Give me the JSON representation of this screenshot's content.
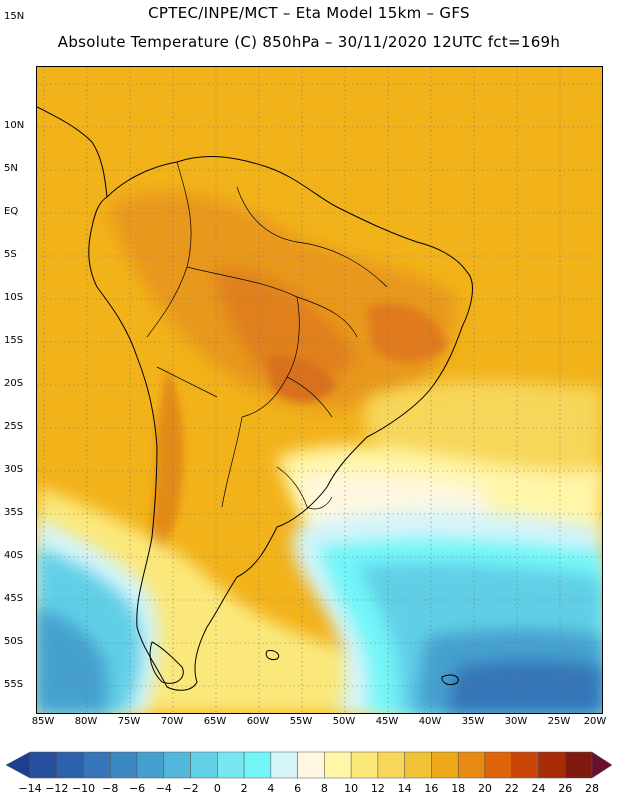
{
  "header": {
    "line1": "CPTEC/INPE/MCT –  Eta Model 15km – GFS",
    "line2": "Absolute Temperature (C) 850hPa – 30/11/2020 12UTC fct=169h"
  },
  "latitude_labels": [
    "15N",
    "10N",
    "5N",
    "EQ",
    "5S",
    "10S",
    "15S",
    "20S",
    "25S",
    "30S",
    "35S",
    "40S",
    "45S",
    "50S",
    "55S"
  ],
  "longitude_labels": [
    "85W",
    "80W",
    "75W",
    "70W",
    "65W",
    "60W",
    "55W",
    "50W",
    "45W",
    "40W",
    "35W",
    "30W",
    "25W",
    "20W"
  ],
  "colorbar": {
    "labels": [
      "-14",
      "-12",
      "-10",
      "-8",
      "-6",
      "-4",
      "-2",
      "0",
      "2",
      "4",
      "6",
      "8",
      "10",
      "12",
      "14",
      "16",
      "18",
      "20",
      "22",
      "24",
      "26",
      "28"
    ],
    "colors": [
      "#1d3f8f",
      "#24509d",
      "#2c62ab",
      "#3575b8",
      "#3c88c3",
      "#45a0cf",
      "#52b7da",
      "#61cfe6",
      "#77e6f0",
      "#72f6f8",
      "#d4f4fa",
      "#fff7e0",
      "#fff6a8",
      "#fbe87a",
      "#f7d65a",
      "#f2c236",
      "#eea918",
      "#e68a10",
      "#de640a",
      "#ca4608",
      "#a82c08",
      "#7e1a10",
      "#6a0f30"
    ]
  }
}
